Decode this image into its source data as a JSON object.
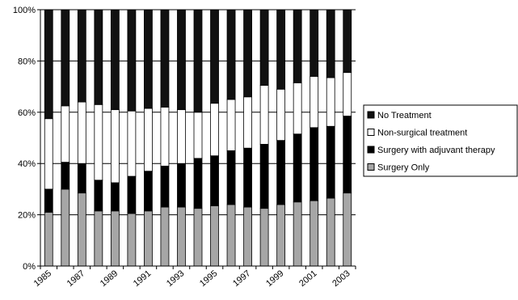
{
  "chart_data": {
    "type": "bar",
    "stacked": true,
    "normalized": true,
    "title": "",
    "xlabel": "",
    "ylabel": "",
    "ylim": [
      0,
      100
    ],
    "y_ticks": [
      "0%",
      "20%",
      "40%",
      "60%",
      "80%",
      "100%"
    ],
    "x_tick_labels": [
      "1985",
      "1987",
      "1989",
      "1991",
      "1993",
      "1995",
      "1997",
      "1999",
      "2001",
      "2003"
    ],
    "categories": [
      "1985",
      "1986",
      "1987",
      "1988",
      "1989",
      "1990",
      "1991",
      "1992",
      "1993",
      "1994",
      "1995",
      "1996",
      "1997",
      "1998",
      "1999",
      "2000",
      "2001",
      "2002",
      "2003"
    ],
    "grid": true,
    "legend_position": "right",
    "series": [
      {
        "name": "Surgery Only",
        "color": "#a6a6a6",
        "values": [
          21,
          30,
          28.5,
          21.5,
          21.5,
          20.5,
          21.5,
          23,
          23,
          22.5,
          23.5,
          24,
          23,
          22.5,
          24,
          25,
          25.5,
          26.5,
          28.5
        ]
      },
      {
        "name": "Surgery with adjuvant therapy",
        "color": "#000000",
        "values": [
          9,
          10.5,
          11.5,
          12,
          11,
          14.5,
          15.5,
          16,
          17,
          19.5,
          19.5,
          21,
          23,
          25,
          25,
          26.5,
          28.5,
          28,
          30
        ]
      },
      {
        "name": "Non-surgical treatment",
        "color": "#ffffff",
        "values": [
          27.5,
          22,
          24,
          29.5,
          28.5,
          25.5,
          24.5,
          23,
          21,
          18,
          20.5,
          20,
          20,
          23,
          20,
          20,
          20,
          19,
          17
        ]
      },
      {
        "name": "No Treatment",
        "color": "#111111",
        "values": [
          42.5,
          37.5,
          36,
          37,
          39,
          39.5,
          38.5,
          38,
          39,
          40,
          36.5,
          35,
          34,
          29.5,
          31,
          28.5,
          26,
          26.5,
          24.5
        ]
      }
    ],
    "legend_order": [
      "No Treatment",
      "Non-surgical treatment",
      "Surgery with adjuvant therapy",
      "Surgery Only"
    ]
  }
}
